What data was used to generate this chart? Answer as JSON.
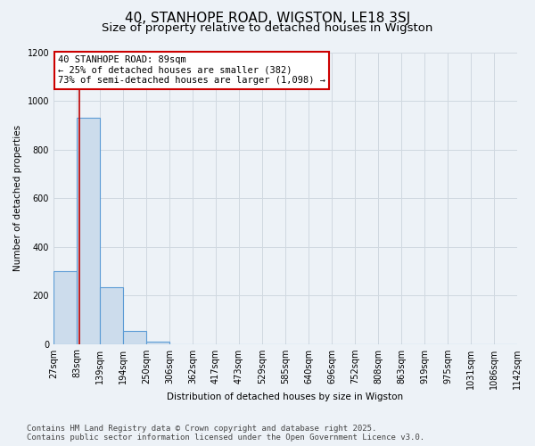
{
  "title": "40, STANHOPE ROAD, WIGSTON, LE18 3SJ",
  "subtitle": "Size of property relative to detached houses in Wigston",
  "ylabel": "Number of detached properties",
  "xlabel": "Distribution of detached houses by size in Wigston",
  "footer": "Contains HM Land Registry data © Crown copyright and database right 2025.\nContains public sector information licensed under the Open Government Licence v3.0.",
  "bin_edges": [
    27,
    83,
    139,
    194,
    250,
    306,
    362,
    417,
    473,
    529,
    585,
    640,
    696,
    752,
    808,
    863,
    919,
    975,
    1031,
    1086,
    1142
  ],
  "bar_heights": [
    300,
    930,
    235,
    55,
    10,
    0,
    0,
    0,
    0,
    0,
    0,
    0,
    0,
    0,
    0,
    0,
    0,
    0,
    0,
    0
  ],
  "bar_color": "#ccdcec",
  "bar_edge_color": "#5b9bd5",
  "property_size": 89,
  "vline_color": "#bb0000",
  "ylim": [
    0,
    1200
  ],
  "yticks": [
    0,
    200,
    400,
    600,
    800,
    1000,
    1200
  ],
  "annotation_text": "40 STANHOPE ROAD: 89sqm\n← 25% of detached houses are smaller (382)\n73% of semi-detached houses are larger (1,098) →",
  "annotation_box_color": "#ffffff",
  "annotation_box_edge_color": "#cc0000",
  "bg_color": "#edf2f7",
  "grid_color": "#d0d8e0",
  "title_fontsize": 11,
  "subtitle_fontsize": 9.5,
  "axis_fontsize": 7.5,
  "tick_fontsize": 7,
  "footer_fontsize": 6.5
}
